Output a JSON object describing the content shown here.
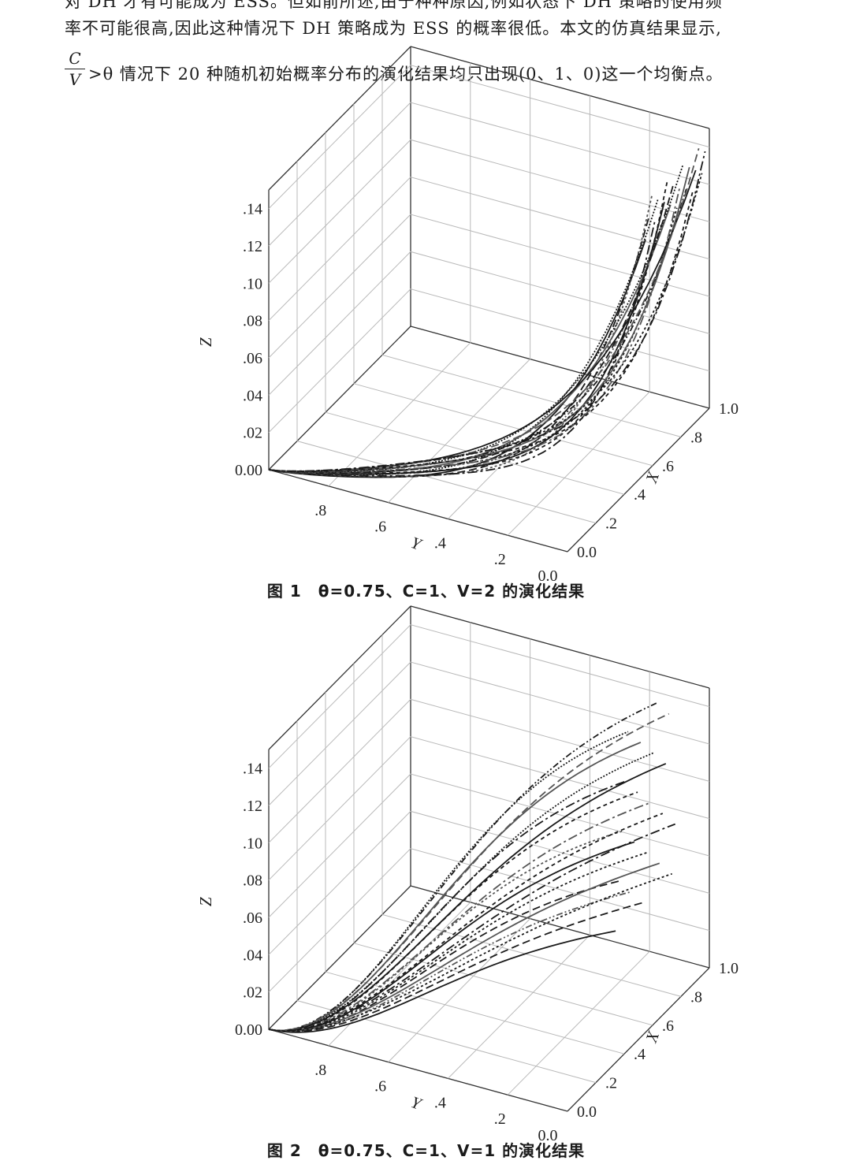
{
  "paragraph": {
    "line0": "对 DH 才有可能成为 ESS。但如前所述,由于种种原因,例如状态下 DH 策略的使用频",
    "line1": "率不可能很高,因此这种情况下 DH 策略成为 ESS 的概率很低。本文的仿真结果显示,",
    "frac_num": "C",
    "frac_den": "V",
    "line2": ">θ 情况下 20 种随机初始概率分布的演化结果均只出现(0、1、0)这一个均衡点。"
  },
  "figures": [
    {
      "caption": "图 1　θ=0.75、C=1、V=2 的演化结果",
      "chart_data": {
        "type": "line3d",
        "zlabel": "Z",
        "ylabel": "Y",
        "xlabel": "X",
        "z_ticks": [
          ".14",
          ".12",
          ".10",
          ".08",
          ".06",
          ".04",
          ".02",
          "0.00"
        ],
        "y_ticks": [
          ".8",
          ".6",
          ".4",
          ".2",
          "0.0"
        ],
        "x_ticks": [
          "1.0",
          ".8",
          ".6",
          ".4",
          ".2",
          "0.0"
        ],
        "zlim": [
          0,
          0.15
        ],
        "ylim": [
          1.0,
          0.0
        ],
        "xlim": [
          0.0,
          1.0
        ],
        "series_count": 20,
        "description_of_trajectories": "all runs start near (Y=1, Z=0) and converge toward Y=0, Z rising steeply near X≈0.6-0.9"
      }
    },
    {
      "caption": "图 2　θ=0.75、C=1、V=1 的演化结果",
      "chart_data": {
        "type": "line3d",
        "zlabel": "Z",
        "ylabel": "Y",
        "xlabel": "X",
        "z_ticks": [
          ".14",
          ".12",
          ".10",
          ".08",
          ".06",
          ".04",
          ".02",
          "0.00"
        ],
        "y_ticks": [
          ".8",
          ".6",
          ".4",
          ".2",
          "0.0"
        ],
        "x_ticks": [
          "1.0",
          ".8",
          ".6",
          ".4",
          ".2",
          "0.0"
        ],
        "zlim": [
          0,
          0.15
        ],
        "ylim": [
          1.0,
          0.0
        ],
        "xlim": [
          0.0,
          1.0
        ],
        "series_count": 20
      }
    }
  ]
}
